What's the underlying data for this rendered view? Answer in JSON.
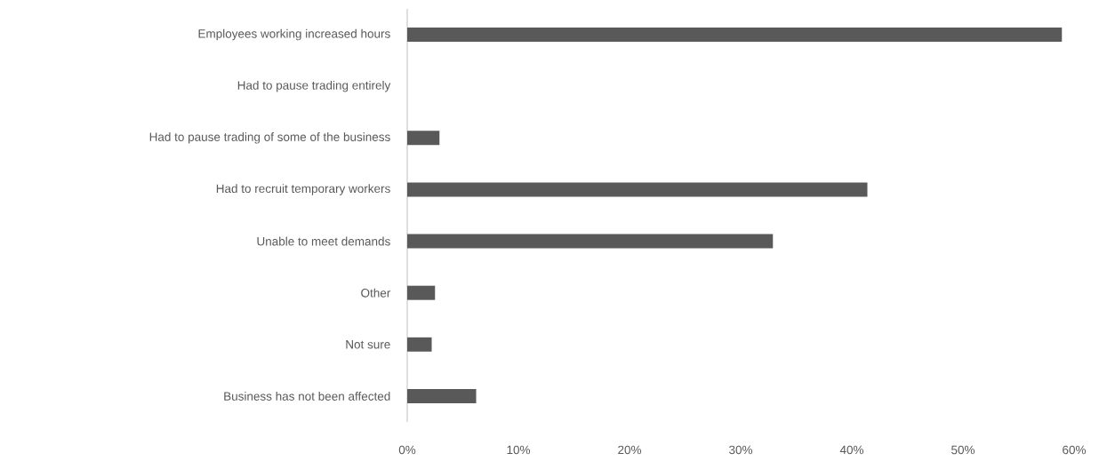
{
  "chart_data": {
    "type": "bar",
    "orientation": "horizontal",
    "categories": [
      "Employees working increased hours",
      "Had to pause trading entirely",
      "Had to pause trading of some of the business",
      "Had to recruit temporary workers",
      "Unable to meet demands",
      "Other",
      "Not sure",
      "Business has not been affected"
    ],
    "values": [
      58.9,
      0,
      2.9,
      41.4,
      32.9,
      2.5,
      2.2,
      6.2
    ],
    "color": "#595959",
    "xlim": [
      0,
      60
    ],
    "xticks": [
      {
        "value": 0,
        "label": "0%"
      },
      {
        "value": 10,
        "label": "10%"
      },
      {
        "value": 20,
        "label": "20%"
      },
      {
        "value": 30,
        "label": "30%"
      },
      {
        "value": 40,
        "label": "40%"
      },
      {
        "value": 50,
        "label": "50%"
      },
      {
        "value": 60,
        "label": "60%"
      }
    ],
    "grid": false
  }
}
